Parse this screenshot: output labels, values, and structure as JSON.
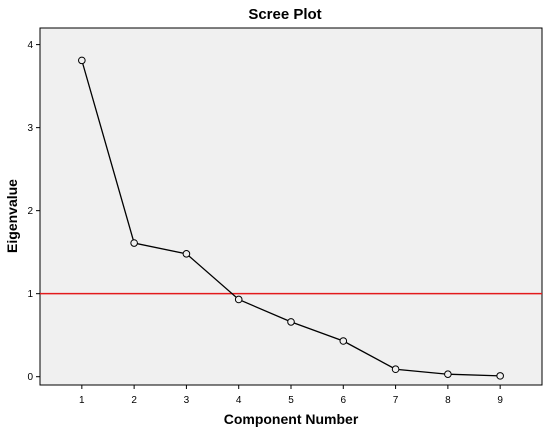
{
  "chart_data": {
    "type": "line",
    "title": "Scree Plot",
    "xlabel": "Component Number",
    "ylabel": "Eigenvalue",
    "categories": [
      1,
      2,
      3,
      4,
      5,
      6,
      7,
      8,
      9
    ],
    "series": [
      {
        "values": [
          3.81,
          1.61,
          1.48,
          0.93,
          0.66,
          0.43,
          0.09,
          0.03,
          0.01
        ],
        "color": "#000000",
        "marker": "open-circle"
      }
    ],
    "reference_line": {
      "y": 1,
      "color": "#e31a1c"
    },
    "x_ticks": [
      "1",
      "2",
      "3",
      "4",
      "5",
      "6",
      "7",
      "8",
      "9"
    ],
    "y_ticks": [
      "0",
      "1",
      "2",
      "3",
      "4"
    ],
    "xlim": [
      0.2,
      9.8
    ],
    "ylim": [
      -0.1,
      4.2
    ],
    "grid": false,
    "plot_background": "#f0f0f0",
    "page_background": "#ffffff"
  }
}
